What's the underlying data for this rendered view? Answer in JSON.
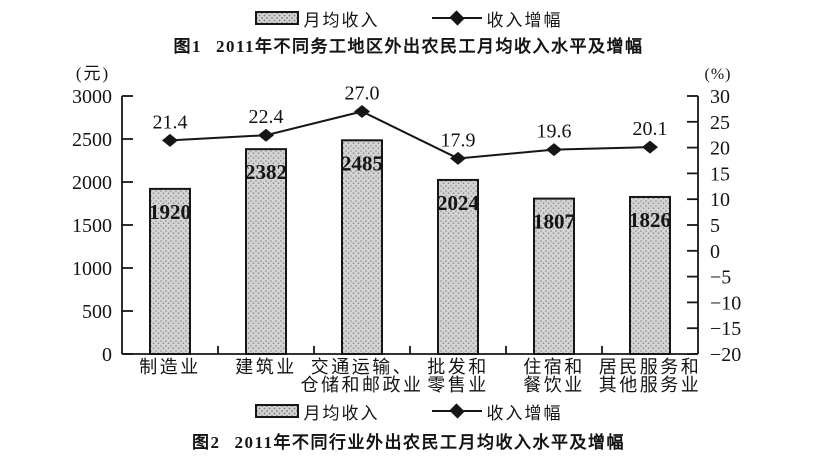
{
  "page": {
    "figure1": {
      "legend": {
        "bar_label": "月均收入",
        "line_label": "收入增幅"
      },
      "caption_prefix": "图1",
      "caption": "2011年不同务工地区外出农民工月均收入水平及增幅"
    },
    "figure2": {
      "legend": {
        "bar_label": "月均收入",
        "line_label": "收入增幅"
      },
      "caption_prefix": "图2",
      "caption": "2011年不同行业外出农民工月均收入水平及增幅"
    }
  },
  "chart_data": {
    "type": "bar",
    "title": "图2 2011年不同行业外出农民工月均收入水平及增幅",
    "categories": [
      "制造业",
      "建筑业",
      "交通运输、仓储和邮政业",
      "批发和零售业",
      "住宿和餐饮业",
      "居民服务和其他服务业"
    ],
    "category_lines": [
      [
        "制造业"
      ],
      [
        "建筑业"
      ],
      [
        "交通运输、",
        "仓储和邮政业"
      ],
      [
        "批发和",
        "零售业"
      ],
      [
        "住宿和",
        "餐饮业"
      ],
      [
        "居民服务和",
        "其他服务业"
      ]
    ],
    "series": [
      {
        "name": "月均收入",
        "type": "bar",
        "axis": "left",
        "values": [
          1920,
          2382,
          2485,
          2024,
          1807,
          1826
        ]
      },
      {
        "name": "收入增幅",
        "type": "line",
        "axis": "right",
        "values": [
          21.4,
          22.4,
          27.0,
          17.9,
          19.6,
          20.1
        ]
      }
    ],
    "left_axis": {
      "unit": "(元)",
      "min": 0,
      "max": 3000,
      "step": 500,
      "tick_labels": [
        "0",
        "500",
        "1000",
        "1500",
        "2000",
        "2500",
        "3000"
      ]
    },
    "right_axis": {
      "unit": "(%)",
      "min": -20,
      "max": 30,
      "step": 5,
      "tick_labels": [
        "−20",
        "−15",
        "−10",
        "−5",
        "0",
        "5",
        "10",
        "15",
        "20",
        "25",
        "30"
      ]
    },
    "legend_position": "bottom",
    "grid": false,
    "colors": {
      "bar_fill": "#d4d4d4",
      "bar_dot": "#8a8a8a",
      "stroke": "#161616",
      "text": "#141414"
    }
  }
}
